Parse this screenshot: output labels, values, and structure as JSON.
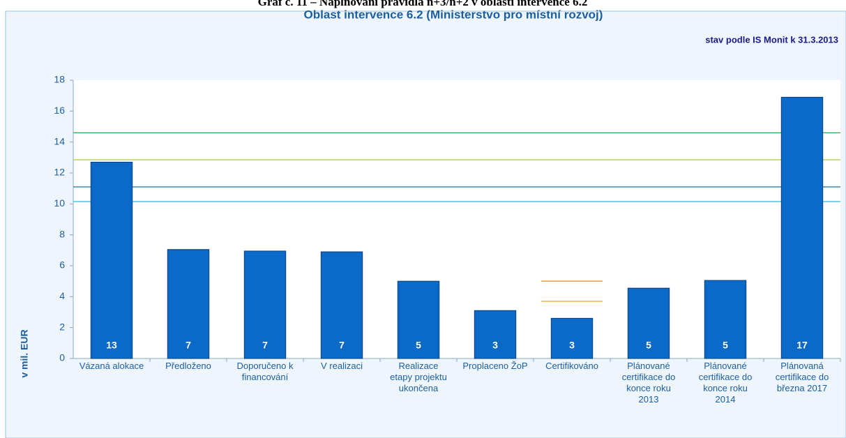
{
  "chart_data": {
    "type": "bar",
    "header": "Graf č. 11 – Naplňování pravidla n+3/n+2 v oblasti intervence 6.2",
    "title": "Oblast intervence 6.2 (Ministerstvo pro místní rozvoj)",
    "subtitle": "stav podle IS Monit k 31.3.2013",
    "y_label": "v mil. EUR",
    "categories": [
      "Vázaná alokace",
      "Předloženo",
      "Doporučeno k financování",
      "V realizaci",
      "Realizace etapy projektu ukončena",
      "Proplaceno ŽoP",
      "Certifikováno",
      "Plánované certifikace do konce roku 2013",
      "Plánované certifikace do konce roku 2014",
      "Plánovaná certifikace do března 2017"
    ],
    "values": [
      12.7,
      7.05,
      6.95,
      6.9,
      5.0,
      3.1,
      2.6,
      4.55,
      5.05,
      16.9
    ],
    "value_labels": [
      "13",
      "7",
      "7",
      "7",
      "5",
      "3",
      "3",
      "5",
      "5",
      "17"
    ],
    "color": "#0b69c7",
    "lines": [
      {
        "value": 14.6,
        "color": "#3aa64a"
      },
      {
        "value": 12.85,
        "color": "#a5cc3c"
      },
      {
        "value": 11.1,
        "color": "#2f7fb0"
      },
      {
        "value": 10.15,
        "color": "#35b6d6"
      }
    ],
    "category_lines": [
      {
        "category": "Certifikováno",
        "value": 5.0,
        "color": "#e8a33a"
      },
      {
        "category": "Certifikováno",
        "value": 3.7,
        "color": "#f0b840"
      }
    ],
    "ylim": [
      0,
      18
    ],
    "yticks": [
      0,
      2,
      4,
      6,
      8,
      10,
      12,
      14,
      16,
      18
    ]
  }
}
